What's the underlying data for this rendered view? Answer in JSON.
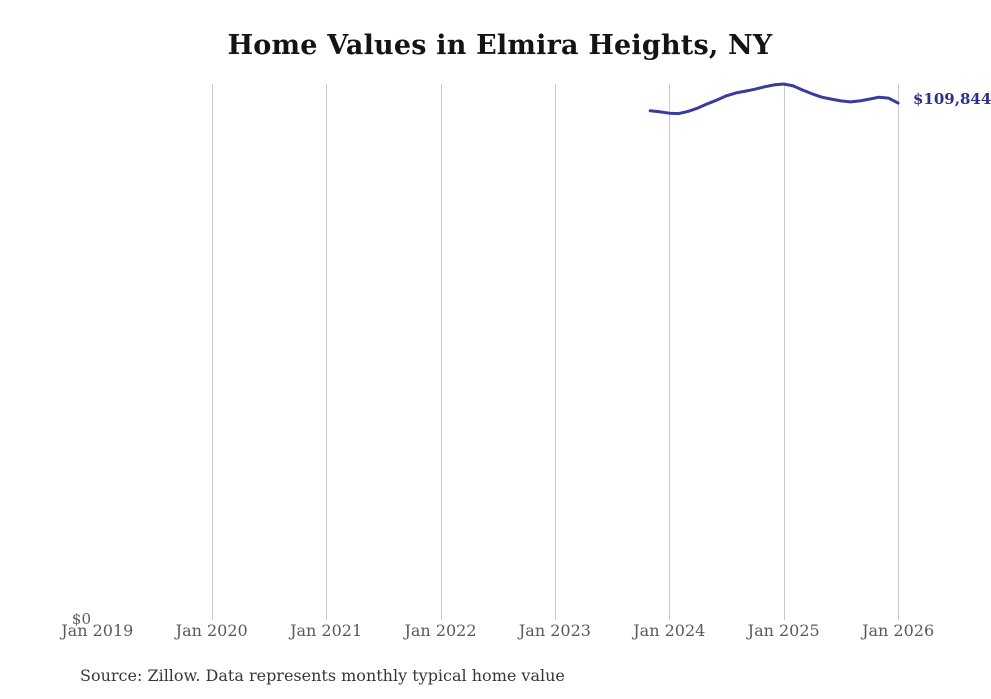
{
  "title": "Home Values in Elmira Heights, NY",
  "source_note": "Source: Zillow. Data represents monthly typical home value",
  "y_axis": {
    "zero_label": "$0"
  },
  "x_axis": {
    "tick_labels": [
      "Jan 2019",
      "Jan 2020",
      "Jan 2021",
      "Jan 2022",
      "Jan 2023",
      "Jan 2024",
      "Jan 2025",
      "Jan 2026"
    ]
  },
  "end_label": "$109,844",
  "colors": {
    "line": "#3a3a9f",
    "end_label": "#2e2e92",
    "gridline": "#c9c9c9",
    "tick_label": "#5a5a5a",
    "title": "#141414",
    "source": "#373737"
  },
  "chart_data": {
    "type": "line",
    "title": "Home Values in Elmira Heights, NY",
    "series_name": "Monthly typical home value",
    "x": [
      "2023-11",
      "2023-12",
      "2024-01",
      "2024-02",
      "2024-03",
      "2024-04",
      "2024-05",
      "2024-06",
      "2024-07",
      "2024-08",
      "2024-09",
      "2024-10",
      "2024-11",
      "2024-12",
      "2025-01",
      "2025-02",
      "2025-03",
      "2025-04",
      "2025-05",
      "2025-06",
      "2025-07",
      "2025-08",
      "2025-09",
      "2025-10",
      "2025-11",
      "2025-12",
      "2026-01"
    ],
    "values": [
      108200,
      108000,
      107700,
      107600,
      108100,
      108800,
      109700,
      110500,
      111400,
      112000,
      112400,
      112800,
      113300,
      113700,
      113900,
      113500,
      112600,
      111800,
      111100,
      110700,
      110300,
      110100,
      110300,
      110700,
      111100,
      110900,
      109844
    ],
    "last_value_label": "$109,844",
    "xlabel": "",
    "ylabel": "",
    "ylim": [
      0,
      113900
    ],
    "x_tick_labels": [
      "Jan 2019",
      "Jan 2020",
      "Jan 2021",
      "Jan 2022",
      "Jan 2023",
      "Jan 2024",
      "Jan 2025",
      "Jan 2026"
    ],
    "grid": "vertical-yearly-only",
    "legend": "none"
  }
}
